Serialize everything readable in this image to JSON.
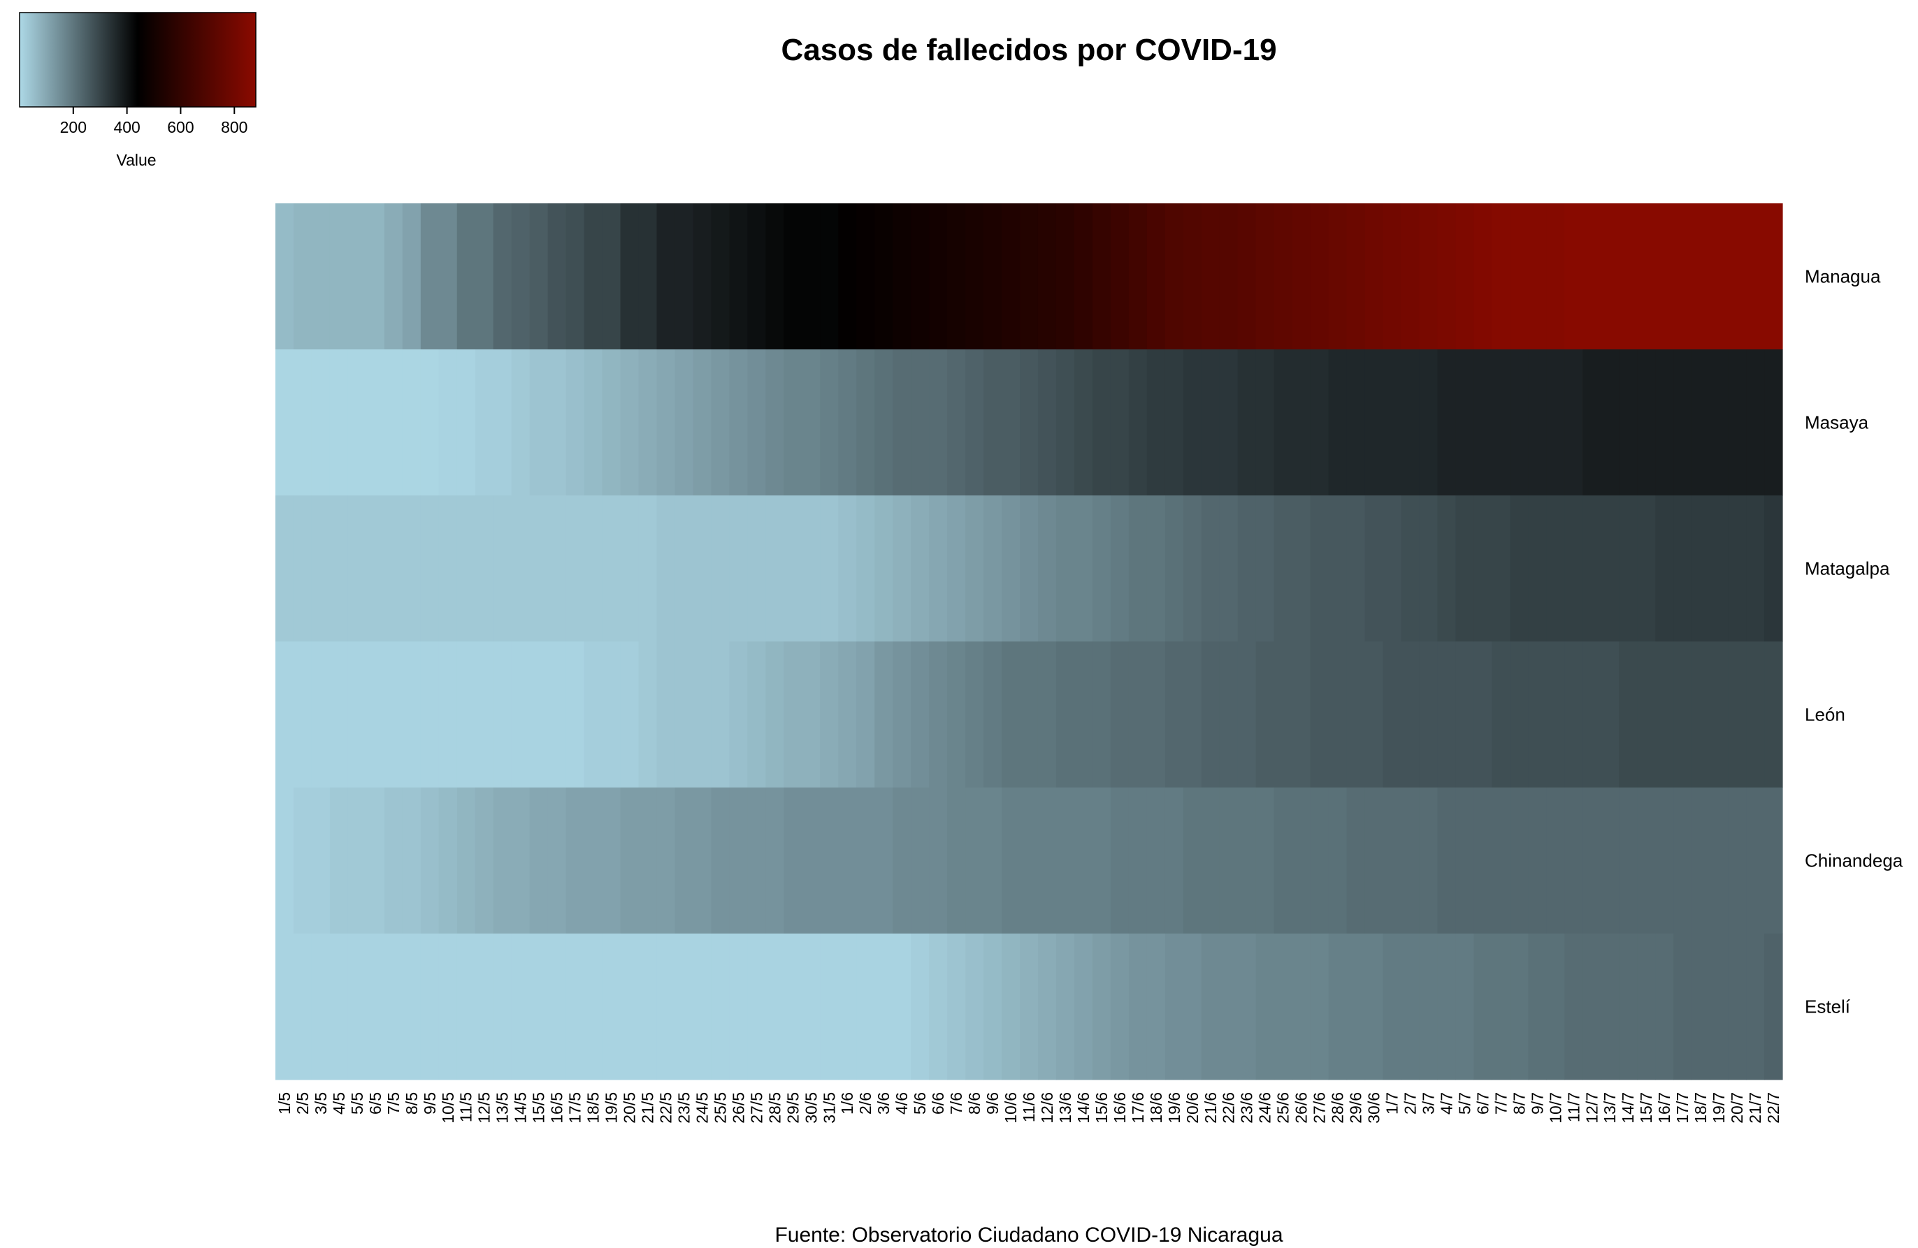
{
  "chart_data": {
    "type": "heatmap",
    "title": "Casos de fallecidos por COVID-19",
    "caption": "Fuente: Observatorio Ciudadano COVID-19 Nicaragua",
    "legend": {
      "position": "top-left",
      "label": "Value",
      "ticks": [
        200,
        400,
        600,
        800
      ],
      "range": [
        0,
        880
      ],
      "colors": [
        "#add8e6",
        "#000000",
        "#8b0a00"
      ]
    },
    "rows": [
      "Managua",
      "Masaya",
      "Matagalpa",
      "León",
      "Chinandega",
      "Estelí"
    ],
    "columns": [
      "1/5",
      "2/5",
      "3/5",
      "4/5",
      "5/5",
      "6/5",
      "7/5",
      "8/5",
      "9/5",
      "10/5",
      "11/5",
      "12/5",
      "13/5",
      "14/5",
      "15/5",
      "16/5",
      "17/5",
      "18/5",
      "19/5",
      "20/5",
      "21/5",
      "22/5",
      "23/5",
      "24/5",
      "25/5",
      "26/5",
      "27/5",
      "28/5",
      "29/5",
      "30/5",
      "31/5",
      "1/6",
      "2/6",
      "3/6",
      "4/6",
      "5/6",
      "6/6",
      "7/6",
      "8/6",
      "9/6",
      "10/6",
      "11/6",
      "12/6",
      "13/6",
      "14/6",
      "15/6",
      "16/6",
      "17/6",
      "18/6",
      "19/6",
      "20/6",
      "21/6",
      "22/6",
      "23/6",
      "24/6",
      "25/6",
      "26/6",
      "27/6",
      "28/6",
      "29/6",
      "30/6",
      "1/7",
      "2/7",
      "3/7",
      "4/7",
      "5/7",
      "6/7",
      "7/7",
      "8/7",
      "9/7",
      "10/7",
      "11/7",
      "12/7",
      "13/7",
      "14/7",
      "15/7",
      "16/7",
      "17/7",
      "18/7",
      "19/7",
      "20/7",
      "21/7",
      "22/7"
    ],
    "values": [
      [
        60,
        70,
        70,
        70,
        70,
        70,
        90,
        110,
        160,
        160,
        200,
        200,
        230,
        240,
        250,
        270,
        280,
        300,
        300,
        340,
        340,
        370,
        370,
        380,
        390,
        400,
        410,
        420,
        430,
        430,
        430,
        450,
        460,
        470,
        480,
        490,
        500,
        510,
        520,
        530,
        540,
        550,
        560,
        570,
        590,
        610,
        630,
        650,
        670,
        690,
        700,
        710,
        710,
        720,
        730,
        740,
        750,
        760,
        770,
        780,
        790,
        800,
        810,
        820,
        830,
        840,
        850,
        860,
        860,
        860,
        860,
        870,
        870,
        870,
        870,
        870,
        870,
        870,
        870,
        870,
        870,
        870,
        870
      ],
      [
        5,
        5,
        5,
        5,
        5,
        5,
        5,
        5,
        5,
        10,
        10,
        20,
        20,
        30,
        40,
        40,
        50,
        60,
        70,
        80,
        90,
        100,
        110,
        120,
        130,
        140,
        150,
        160,
        170,
        170,
        180,
        190,
        200,
        210,
        220,
        220,
        220,
        230,
        240,
        250,
        250,
        260,
        270,
        280,
        290,
        300,
        300,
        310,
        320,
        320,
        330,
        330,
        330,
        340,
        340,
        350,
        350,
        350,
        360,
        360,
        360,
        360,
        360,
        360,
        370,
        370,
        370,
        370,
        370,
        370,
        370,
        370,
        380,
        380,
        380,
        380,
        380,
        380,
        380,
        380,
        380,
        380,
        380
      ],
      [
        30,
        30,
        30,
        30,
        30,
        30,
        30,
        30,
        30,
        30,
        30,
        30,
        30,
        30,
        30,
        30,
        30,
        30,
        30,
        30,
        30,
        40,
        40,
        40,
        40,
        40,
        40,
        40,
        40,
        40,
        40,
        50,
        60,
        70,
        80,
        90,
        100,
        110,
        120,
        130,
        140,
        150,
        160,
        170,
        170,
        180,
        190,
        200,
        200,
        210,
        220,
        230,
        230,
        240,
        240,
        250,
        250,
        260,
        260,
        260,
        270,
        270,
        280,
        280,
        290,
        300,
        300,
        300,
        310,
        310,
        310,
        310,
        310,
        310,
        310,
        310,
        320,
        320,
        320,
        320,
        320,
        320,
        330
      ],
      [
        10,
        10,
        10,
        10,
        10,
        10,
        10,
        10,
        10,
        10,
        10,
        10,
        10,
        10,
        10,
        10,
        10,
        20,
        20,
        20,
        30,
        40,
        40,
        40,
        40,
        50,
        60,
        70,
        80,
        80,
        90,
        100,
        110,
        130,
        140,
        150,
        160,
        170,
        180,
        190,
        200,
        200,
        200,
        210,
        210,
        210,
        220,
        220,
        220,
        230,
        230,
        240,
        240,
        240,
        250,
        250,
        250,
        260,
        260,
        260,
        260,
        270,
        270,
        270,
        270,
        270,
        270,
        280,
        280,
        280,
        280,
        280,
        280,
        280,
        290,
        290,
        290,
        290,
        290,
        290,
        290,
        290,
        290
      ],
      [
        10,
        20,
        20,
        30,
        30,
        30,
        40,
        40,
        50,
        60,
        70,
        80,
        90,
        90,
        100,
        100,
        110,
        110,
        110,
        120,
        120,
        120,
        130,
        130,
        140,
        140,
        140,
        140,
        150,
        150,
        150,
        150,
        150,
        150,
        160,
        160,
        160,
        170,
        170,
        170,
        180,
        180,
        180,
        180,
        180,
        180,
        190,
        190,
        190,
        190,
        200,
        200,
        200,
        200,
        200,
        210,
        210,
        210,
        210,
        220,
        220,
        220,
        220,
        220,
        230,
        230,
        230,
        230,
        230,
        230,
        230,
        230,
        230,
        230,
        230,
        230,
        230,
        230,
        230,
        230,
        230,
        230,
        230
      ],
      [
        10,
        10,
        10,
        10,
        10,
        10,
        10,
        10,
        10,
        10,
        10,
        10,
        10,
        10,
        10,
        10,
        10,
        10,
        10,
        10,
        10,
        10,
        10,
        10,
        10,
        10,
        10,
        10,
        10,
        10,
        10,
        10,
        10,
        10,
        10,
        20,
        30,
        40,
        50,
        60,
        70,
        80,
        90,
        100,
        110,
        120,
        130,
        140,
        140,
        150,
        150,
        160,
        160,
        160,
        170,
        170,
        170,
        170,
        180,
        180,
        180,
        190,
        190,
        190,
        190,
        190,
        200,
        200,
        200,
        210,
        210,
        220,
        220,
        220,
        220,
        220,
        220,
        230,
        230,
        230,
        230,
        230,
        240
      ]
    ],
    "xlabel": "",
    "ylabel": ""
  }
}
